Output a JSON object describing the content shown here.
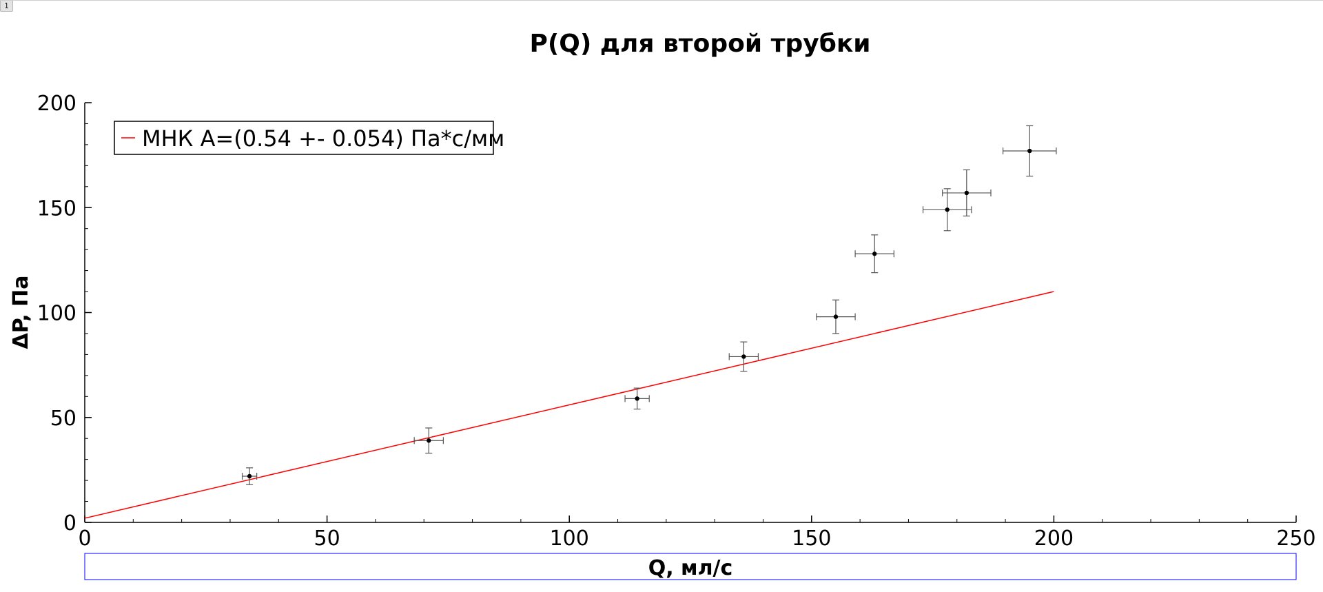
{
  "page": {
    "tab_label": "1"
  },
  "colors": {
    "fit_line": "#ff0000",
    "points": "#000000",
    "axis": "#000000",
    "xlabel_box": "#0000ff"
  },
  "chart_data": {
    "type": "scatter",
    "title": "P(Q) для второй трубки",
    "xlabel": "Q, мл/с",
    "ylabel": "ΔP, Па",
    "xlim": [
      0,
      250
    ],
    "ylim": [
      0,
      200
    ],
    "x_ticks": [
      0,
      50,
      100,
      150,
      200,
      250
    ],
    "y_ticks": [
      0,
      50,
      100,
      150,
      200
    ],
    "x_minor_step": 10,
    "y_minor_step": 10,
    "grid": false,
    "legend_position": "top-left",
    "points": [
      {
        "x": 34,
        "y": 22,
        "xerr": 1.5,
        "yerr": 4
      },
      {
        "x": 71,
        "y": 39,
        "xerr": 3,
        "yerr": 6
      },
      {
        "x": 114,
        "y": 59,
        "xerr": 2.5,
        "yerr": 5
      },
      {
        "x": 136,
        "y": 79,
        "xerr": 3,
        "yerr": 7
      },
      {
        "x": 155,
        "y": 98,
        "xerr": 4,
        "yerr": 8
      },
      {
        "x": 163,
        "y": 128,
        "xerr": 4,
        "yerr": 9
      },
      {
        "x": 178,
        "y": 149,
        "xerr": 5,
        "yerr": 10
      },
      {
        "x": 182,
        "y": 157,
        "xerr": 5,
        "yerr": 11
      },
      {
        "x": 195,
        "y": 177,
        "xerr": 5.5,
        "yerr": 12
      }
    ],
    "fit": {
      "name": "МНК A=(0.54 +- 0.054) Па*с/мм",
      "slope": 0.54,
      "intercept": 2,
      "x_range": [
        0,
        200
      ]
    }
  }
}
